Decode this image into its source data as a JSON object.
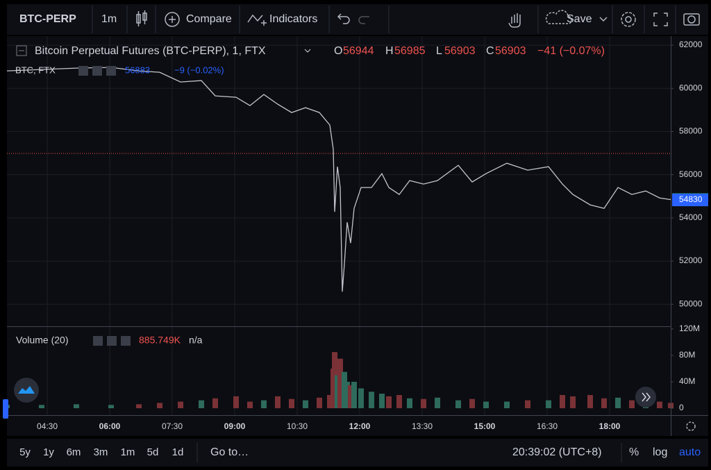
{
  "toolbar": {
    "symbol": "BTC-PERP",
    "interval": "1m",
    "compare": "Compare",
    "indicators": "Indicators",
    "save": "Save"
  },
  "legend": {
    "title": "Bitcoin Perpetual Futures (BTC-PERP), 1, FTX",
    "o_label": "O",
    "open": 56944,
    "h_label": "H",
    "high": 56985,
    "l_label": "L",
    "low": 56903,
    "c_label": "C",
    "close": 56903,
    "change": "−41 (−0.07%)"
  },
  "compare_legend": {
    "name": "BTC, FTX",
    "value": 56883,
    "change": "−9 (−0.02%)"
  },
  "volume_legend": {
    "name": "Volume (20)",
    "value": "885.749K",
    "extra": "n/a"
  },
  "chart_data": [
    {
      "type": "line",
      "color": "#c3c6ce",
      "x": [
        212,
        262,
        312,
        362,
        402,
        432,
        462,
        492,
        512,
        542,
        562,
        582,
        602,
        622,
        642,
        662,
        677,
        682,
        684,
        688,
        692,
        695,
        698,
        702,
        707,
        712,
        722,
        737,
        752,
        762,
        777,
        792,
        812,
        832,
        862,
        882,
        902,
        932,
        962,
        992,
        1012,
        1027,
        1052,
        1072,
        1092,
        1112,
        1132,
        1152,
        1168
      ],
      "values": [
        60810,
        60875,
        60939,
        60971,
        60810,
        60746,
        60296,
        60360,
        59653,
        59588,
        59203,
        59717,
        59267,
        58881,
        59106,
        58881,
        58302,
        57177,
        54283,
        56373,
        55408,
        50585,
        51871,
        53801,
        52836,
        54444,
        55408,
        55408,
        56052,
        55408,
        55087,
        55730,
        55569,
        55730,
        56437,
        55666,
        56052,
        56534,
        56212,
        56373,
        55569,
        55087,
        54605,
        54444,
        55408,
        55087,
        55248,
        54926,
        54849
      ],
      "xlim": [
        212,
        1168
      ],
      "xticks": [
        {
          "value": 270,
          "label": "04:30"
        },
        {
          "value": 360,
          "label": "06:00"
        },
        {
          "value": 450,
          "label": "07:30"
        },
        {
          "value": 540,
          "label": "09:00"
        },
        {
          "value": 630,
          "label": "10:30"
        },
        {
          "value": 720,
          "label": "12:00"
        },
        {
          "value": 810,
          "label": "13:30"
        },
        {
          "value": 900,
          "label": "15:00"
        },
        {
          "value": 990,
          "label": "16:30"
        },
        {
          "value": 1080,
          "label": "18:00"
        }
      ],
      "ylim": [
        48980,
        62420
      ],
      "yticks": [
        50000,
        52000,
        54000,
        56000,
        58000,
        60000,
        62000
      ],
      "price_line": 56985,
      "last_price": 54849,
      "last_color": "#26a69a",
      "compare_price": 54830,
      "compare_color": "#2962ff",
      "grid": true
    },
    {
      "type": "bar",
      "up_color": "#2e6b5c",
      "down_color": "#7a3236",
      "x": [
        212,
        262,
        312,
        362,
        402,
        432,
        462,
        492,
        512,
        542,
        562,
        582,
        602,
        622,
        642,
        662,
        677,
        682,
        684,
        688,
        692,
        695,
        698,
        702,
        707,
        712,
        722,
        737,
        752,
        762,
        777,
        792,
        812,
        832,
        862,
        882,
        902,
        932,
        962,
        992,
        1012,
        1027,
        1052,
        1072,
        1092,
        1112,
        1132,
        1152,
        1168
      ],
      "values": [
        5000000,
        5000000,
        6000000,
        5000000,
        6000000,
        8000000,
        10000000,
        12000000,
        15000000,
        18000000,
        10000000,
        12000000,
        18000000,
        14000000,
        12000000,
        16000000,
        20000000,
        60000000,
        85000000,
        50000000,
        75000000,
        45000000,
        55000000,
        40000000,
        35000000,
        40000000,
        30000000,
        25000000,
        22000000,
        18000000,
        20000000,
        15000000,
        14000000,
        16000000,
        12000000,
        14000000,
        10000000,
        10000000,
        12000000,
        12000000,
        20000000,
        18000000,
        20000000,
        15000000,
        16000000,
        12000000,
        10000000,
        10000000,
        8000000
      ],
      "xlim": [
        212,
        1168
      ],
      "ylim": [
        -10500000,
        123000000
      ],
      "yticks": [
        0,
        {
          "value": 40000000,
          "label": "40M"
        },
        {
          "value": 80000000,
          "label": "80M"
        },
        {
          "value": 120000000,
          "label": "120M"
        }
      ]
    }
  ],
  "bottom_bar": {
    "ranges": [
      "5y",
      "1y",
      "6m",
      "3m",
      "1m",
      "5d",
      "1d"
    ],
    "goto": "Go to…",
    "clock": "20:39:02 (UTC+8)",
    "percent": "%",
    "log": "log",
    "auto": "auto"
  }
}
